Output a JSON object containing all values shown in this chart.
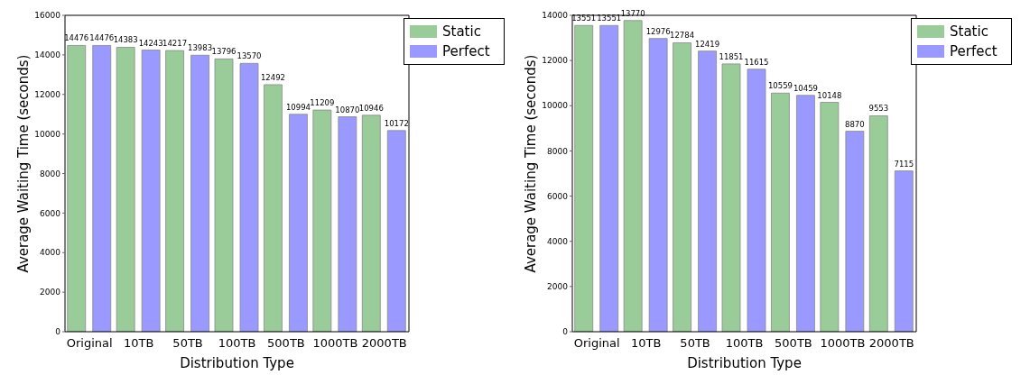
{
  "chart_data": [
    {
      "type": "bar",
      "xlabel": "Distribution Type",
      "ylabel": "Average Waiting Time (seconds)",
      "categories": [
        "Original",
        "10TB",
        "50TB",
        "100TB",
        "500TB",
        "1000TB",
        "2000TB"
      ],
      "series": [
        {
          "name": "Static",
          "color": "#99cc99",
          "values": [
            14476,
            14383,
            14217,
            13796,
            12492,
            11209,
            10946
          ]
        },
        {
          "name": "Perfect",
          "color": "#9999ff",
          "values": [
            14476,
            14243,
            13983,
            13570,
            10994,
            10870,
            10172
          ]
        }
      ],
      "ylim": [
        0,
        16000
      ],
      "yticks": [
        0,
        2000,
        4000,
        6000,
        8000,
        10000,
        12000,
        14000,
        16000
      ],
      "data_labels": true,
      "legend": "top right",
      "grid": false
    },
    {
      "type": "bar",
      "xlabel": "Distribution Type",
      "ylabel": "Average Waiting Time (seconds)",
      "categories": [
        "Original",
        "10TB",
        "50TB",
        "100TB",
        "500TB",
        "1000TB",
        "2000TB"
      ],
      "series": [
        {
          "name": "Static",
          "color": "#99cc99",
          "values": [
            13551,
            13770,
            12784,
            11851,
            10559,
            10148,
            9553
          ]
        },
        {
          "name": "Perfect",
          "color": "#9999ff",
          "values": [
            13551,
            12976,
            12419,
            11615,
            10459,
            8870,
            7115
          ]
        }
      ],
      "ylim": [
        0,
        14000
      ],
      "yticks": [
        0,
        2000,
        4000,
        6000,
        8000,
        10000,
        12000,
        14000
      ],
      "data_labels": true,
      "legend": "top right",
      "grid": false
    }
  ]
}
